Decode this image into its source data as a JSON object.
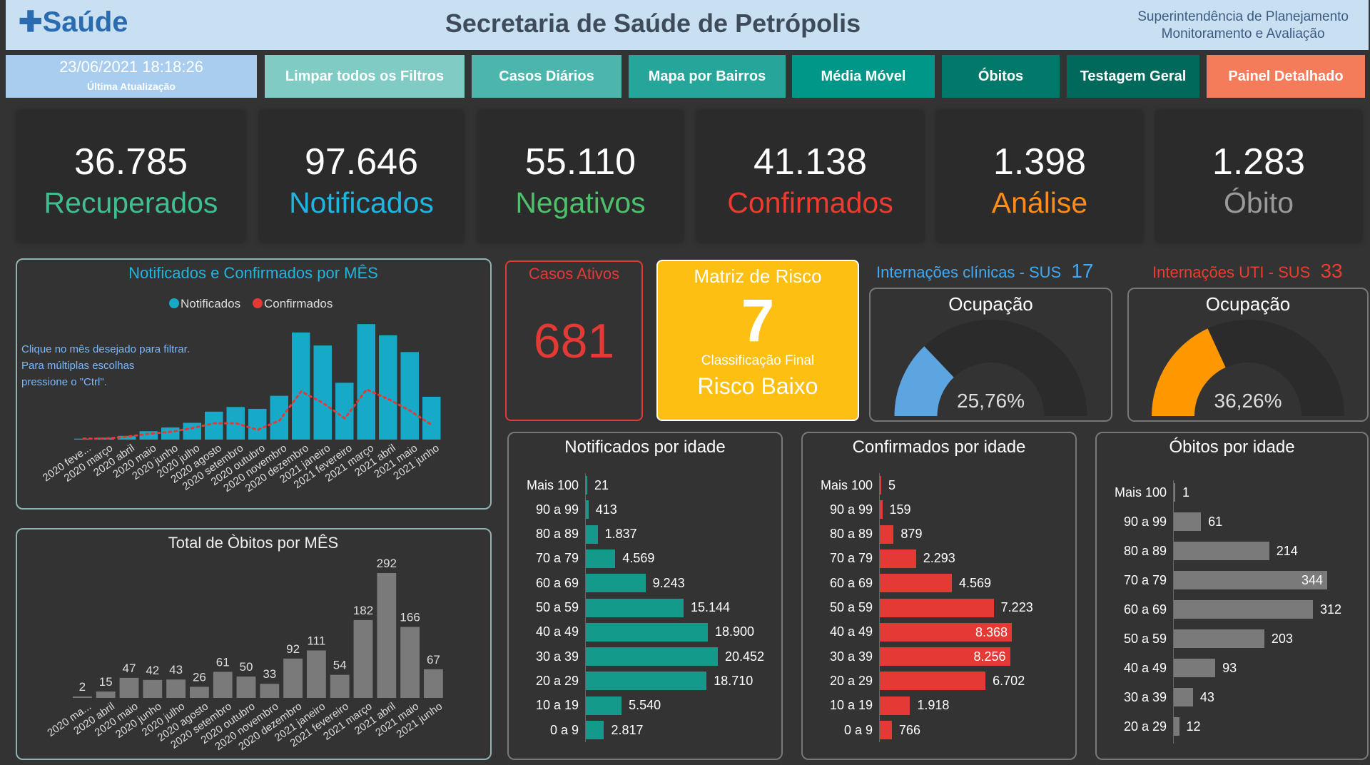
{
  "header": {
    "logo": "Saúde",
    "title": "Secretaria de Saúde de Petrópolis",
    "sup_line1": "Superintendência de Planejamento",
    "sup_line2": "Monitoramento e Avaliação"
  },
  "update": {
    "datetime": "23/06/2021 18:18:26",
    "label": "Última Atualização"
  },
  "nav": [
    {
      "label": "Limpar todos os Filtros",
      "color": "#80cbc4"
    },
    {
      "label": "Casos Diários",
      "color": "#4db6ac"
    },
    {
      "label": "Mapa por Bairros",
      "color": "#26a69a"
    },
    {
      "label": "Média Móvel",
      "color": "#009688"
    },
    {
      "label": "Óbitos",
      "color": "#00796b"
    },
    {
      "label": "Testagem Geral",
      "color": "#00695c"
    },
    {
      "label": "Painel Detalhado",
      "color": "#f47c5a"
    }
  ],
  "kpis": [
    {
      "value": "36.785",
      "label": "Recuperados",
      "color": "#3fbf8f"
    },
    {
      "value": "97.646",
      "label": "Notificados",
      "color": "#1fb5e0"
    },
    {
      "value": "55.110",
      "label": "Negativos",
      "color": "#4cc06a"
    },
    {
      "value": "41.138",
      "label": "Confirmados",
      "color": "#ee3b2e"
    },
    {
      "value": "1.398",
      "label": "Análise",
      "color": "#ff8c1a"
    },
    {
      "value": "1.283",
      "label": "Óbito",
      "color": "#9a9a9a"
    }
  ],
  "ativos": {
    "title": "Casos Ativos",
    "value": "681"
  },
  "matriz": {
    "title": "Matriz de Risco",
    "value": "7",
    "sub": "Classificação Final",
    "class": "Risco Baixo"
  },
  "int_clin": {
    "title": "Internações clínicas - SUS",
    "count": "17",
    "gauge_title": "Ocupação",
    "pct_label": "25,76%",
    "pct": 25.76,
    "color": "#5da5e0"
  },
  "int_uti": {
    "title": "Internações UTI - SUS",
    "count": "33",
    "gauge_title": "Ocupação",
    "pct_label": "36,26%",
    "pct": 36.26,
    "color": "#ff9800"
  },
  "chart_data": [
    {
      "type": "bar",
      "title": "Notificados e Confirmados por MÊS",
      "note": [
        "Clique no mês desejado para filtrar.",
        "Para múltiplas escolhas",
        "pressione o \"Ctrl\"."
      ],
      "categories": [
        "2020 feve...",
        "2020 março",
        "2020 abril",
        "2020 maio",
        "2020 junho",
        "2020 julho",
        "2020 agosto",
        "2020 setembro",
        "2020 outubro",
        "2020 novembro",
        "2020 dezembro",
        "2021 janeiro",
        "2021 fevereiro",
        "2021 março",
        "2021 abril",
        "2021 maio",
        "2021 junho"
      ],
      "series": [
        {
          "name": "Notificados",
          "type": "bar",
          "color": "#17aac8",
          "values": [
            116,
            231,
            462,
            1040,
            1503,
            2081,
            3468,
            4046,
            3815,
            5433,
            13294,
            11676,
            7052,
            14334,
            12947,
            10866,
            5318
          ]
        },
        {
          "name": "Confirmados",
          "type": "line",
          "color": "#e53935",
          "values": [
            120,
            120,
            360,
            720,
            960,
            1435,
            2030,
            2030,
            1200,
            2390,
            5980,
            4540,
            2630,
            6220,
            5020,
            3590,
            1790
          ]
        }
      ]
    },
    {
      "type": "bar",
      "title": "Total de Òbitos por MÊS",
      "color": "#7a7a7a",
      "categories": [
        "2020 ma...",
        "2020 abril",
        "2020 maio",
        "2020 junho",
        "2020 julho",
        "2020 agosto",
        "2020 setembro",
        "2020 outubro",
        "2020 novembro",
        "2020 dezembro",
        "2021 janeiro",
        "2021 fevereiro",
        "2021 março",
        "2021 abril",
        "2021 maio",
        "2021 junho"
      ],
      "values": [
        2,
        15,
        47,
        42,
        43,
        26,
        61,
        50,
        33,
        92,
        111,
        54,
        182,
        292,
        166,
        67
      ]
    },
    {
      "type": "bar",
      "orientation": "horizontal",
      "title": "Notificados por idade",
      "color": "#139a8a",
      "categories": [
        "Mais 100",
        "90 a 99",
        "80 a 89",
        "70 a 79",
        "60 a 69",
        "50 a 59",
        "40 a 49",
        "30 a 39",
        "20 a 29",
        "10 a 19",
        "0 a 9"
      ],
      "values": [
        21,
        413,
        1837,
        4569,
        9243,
        15144,
        18900,
        20452,
        18710,
        5540,
        2817
      ],
      "labels": [
        "21",
        "413",
        "1.837",
        "4.569",
        "9.243",
        "15.144",
        "18.900",
        "20.452",
        "18.710",
        "5.540",
        "2.817"
      ]
    },
    {
      "type": "bar",
      "orientation": "horizontal",
      "title": "Confirmados por idade",
      "color": "#e53935",
      "categories": [
        "Mais 100",
        "90 a 99",
        "80 a 89",
        "70 a 79",
        "60 a 69",
        "50 a 59",
        "40 a 49",
        "30 a 39",
        "20 a 29",
        "10 a 19",
        "0 a 9"
      ],
      "values": [
        5,
        159,
        879,
        2293,
        4569,
        7223,
        8368,
        8256,
        6702,
        1918,
        766
      ],
      "labels": [
        "5",
        "159",
        "879",
        "2.293",
        "4.569",
        "7.223",
        "8.368",
        "8.256",
        "6.702",
        "1.918",
        "766"
      ]
    },
    {
      "type": "bar",
      "orientation": "horizontal",
      "title": "Óbitos por idade",
      "color": "#7a7a7a",
      "categories": [
        "Mais 100",
        "90 a 99",
        "80 a 89",
        "70 a 79",
        "60 a 69",
        "50 a 59",
        "40 a 49",
        "30 a 39",
        "20 a 29"
      ],
      "values": [
        1,
        61,
        214,
        344,
        312,
        203,
        93,
        43,
        12
      ],
      "labels": [
        "1",
        "61",
        "214",
        "344",
        "312",
        "203",
        "93",
        "43",
        "12"
      ]
    }
  ]
}
